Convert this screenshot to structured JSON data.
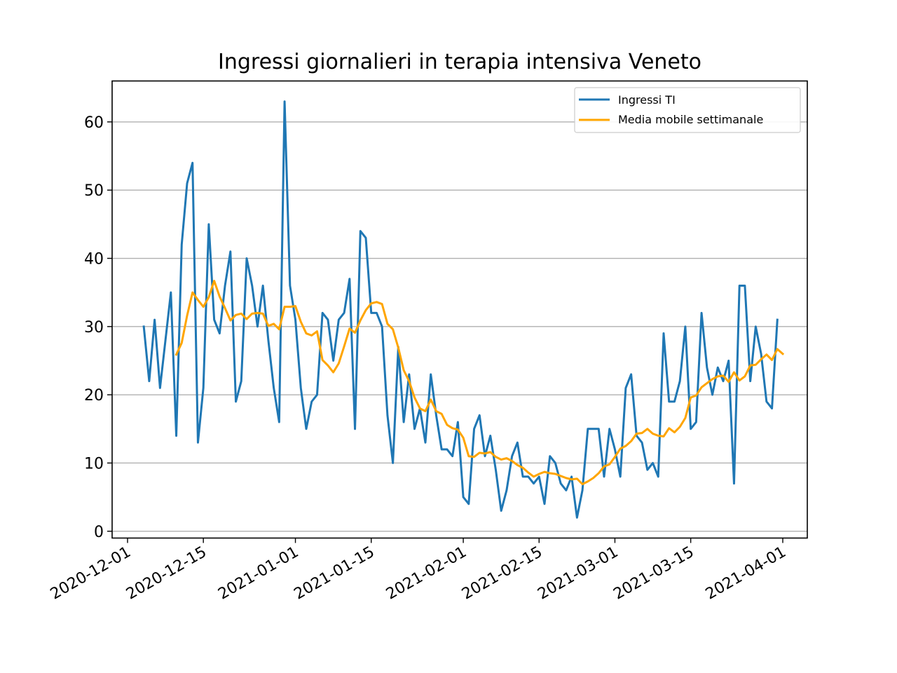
{
  "chart_data": {
    "type": "line",
    "title": "Ingressi giornalieri in terapia intensiva Veneto",
    "xlabel": "",
    "ylabel": "",
    "x_start": "2020-12-04",
    "x_end": "2021-03-31",
    "xlim": [
      "2020-12-01",
      "2021-04-01"
    ],
    "ylim": [
      -1,
      66
    ],
    "yticks": [
      0,
      10,
      20,
      30,
      40,
      50,
      60
    ],
    "xticks": [
      "2020-12-01",
      "2020-12-15",
      "2021-01-01",
      "2021-01-15",
      "2021-02-01",
      "2021-02-15",
      "2021-03-01",
      "2021-03-15",
      "2021-04-01"
    ],
    "grid": "horizontal",
    "legend_position": "top-right",
    "series": [
      {
        "name": "Ingressi TI",
        "color": "#1f77b4",
        "values": [
          30,
          22,
          31,
          21,
          28,
          35,
          14,
          42,
          51,
          54,
          13,
          21,
          45,
          31,
          29,
          36,
          41,
          19,
          22,
          40,
          36,
          30,
          36,
          28,
          21,
          16,
          63,
          36,
          31,
          21,
          15,
          19,
          20,
          32,
          31,
          25,
          31,
          32,
          37,
          15,
          44,
          43,
          32,
          32,
          30,
          17,
          10,
          27,
          16,
          23,
          15,
          18,
          13,
          23,
          17,
          12,
          12,
          11,
          16,
          5,
          4,
          15,
          17,
          11,
          14,
          9,
          3,
          6,
          11,
          13,
          8,
          8,
          7,
          8,
          4,
          11,
          10,
          7,
          6,
          8,
          2,
          6,
          15,
          15,
          15,
          8,
          15,
          12,
          8,
          21,
          23,
          14,
          13,
          9,
          10,
          8,
          29,
          19,
          19,
          22,
          30,
          15,
          16,
          32,
          24,
          20,
          24,
          22,
          25,
          7,
          36,
          36,
          22,
          30,
          26,
          19,
          18,
          31
        ]
      },
      {
        "name": "Media mobile settimanale",
        "color": "#ffa500",
        "offset": 6,
        "values": [
          25.9,
          27.6,
          31.6,
          35.0,
          33.9,
          32.9,
          34.3,
          36.7,
          34.4,
          32.7,
          30.9,
          31.7,
          31.9,
          31.1,
          31.9,
          32.0,
          31.9,
          30.1,
          30.4,
          29.6,
          32.9,
          32.9,
          33.0,
          30.7,
          29.0,
          28.7,
          29.3,
          25.1,
          24.3,
          23.3,
          24.6,
          27.1,
          29.7,
          29.1,
          30.9,
          32.4,
          33.4,
          33.6,
          33.3,
          30.4,
          29.6,
          26.9,
          23.6,
          22.0,
          19.6,
          18.0,
          17.6,
          19.3,
          17.6,
          17.2,
          15.6,
          15.1,
          14.9,
          13.7,
          11.0,
          10.9,
          11.5,
          11.4,
          11.6,
          10.9,
          10.5,
          10.7,
          10.3,
          9.7,
          9.3,
          8.6,
          8.0,
          8.4,
          8.7,
          8.5,
          8.4,
          8.1,
          7.8,
          7.6,
          7.7,
          6.9,
          7.3,
          7.8,
          8.5,
          9.5,
          9.8,
          10.9,
          12.1,
          12.5,
          13.2,
          14.3,
          14.4,
          15.0,
          14.3,
          14.0,
          13.9,
          15.1,
          14.5,
          15.3,
          16.6,
          19.6,
          19.9,
          21.1,
          21.7,
          22.3,
          22.7,
          22.8,
          21.9,
          23.3,
          22.1,
          22.7,
          24.3,
          24.4,
          25.2,
          25.9,
          25.1,
          26.7,
          26.0
        ]
      }
    ]
  }
}
